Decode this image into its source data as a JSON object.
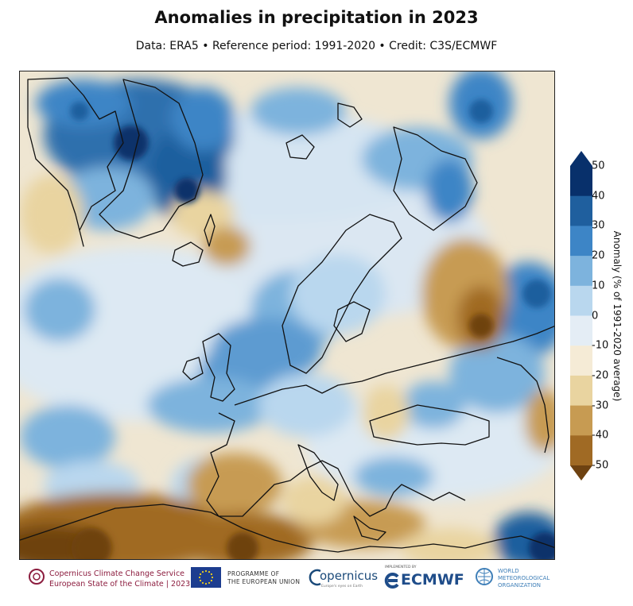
{
  "title": "Anomalies in precipitation in 2023",
  "subtitle": "Data: ERA5 • Reference period: 1991-2020 • Credit: C3S/ECMWF",
  "colorbar": {
    "label": "Anomaly (% of 1991-2020 average)",
    "ticks": [
      "50",
      "40",
      "30",
      "20",
      "10",
      "0",
      "-10",
      "-20",
      "-30",
      "-40",
      "-50"
    ],
    "colors": [
      "#08306b",
      "#1f5f9e",
      "#3d85c6",
      "#7db3dd",
      "#b9d7ee",
      "#e4edf5",
      "#f5ebd6",
      "#e9d4a0",
      "#c79b52",
      "#a06a24",
      "#6e4211"
    ]
  },
  "footer": {
    "c3s_line1": "Copernicus Climate Change Service",
    "c3s_line2": "European State of the Climate | 2023",
    "eu_line1": "PROGRAMME OF",
    "eu_line2": "THE EUROPEAN UNION",
    "copernicus": "opernicus",
    "copernicus_sub": "Europe's eyes on Earth",
    "ecmwf_sub": "IMPLEMENTED BY",
    "ecmwf": "ECMWF",
    "wmo_line1": "WORLD",
    "wmo_line2": "METEOROLOGICAL",
    "wmo_line3": "ORGANIZATION"
  }
}
